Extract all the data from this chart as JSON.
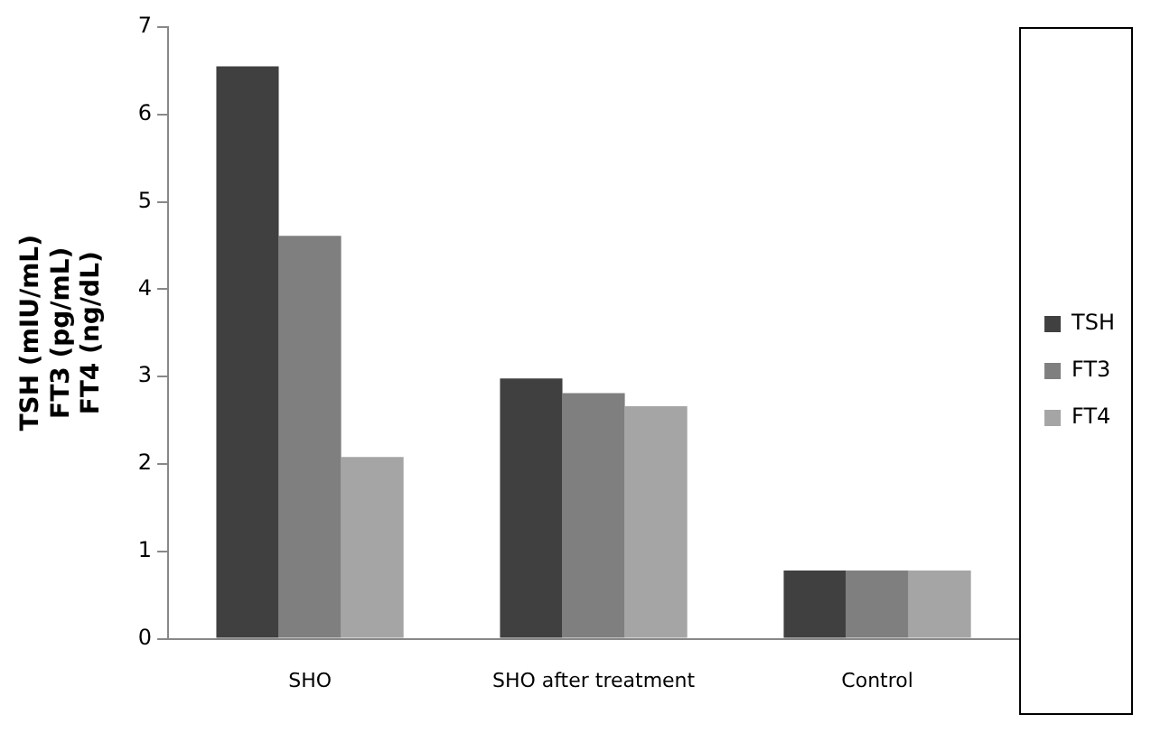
{
  "chart_data": {
    "type": "bar",
    "ylabel": "TSH (mIU/mL)\nFT3 (pg/mL)\nFT4 (ng/dL)",
    "categories": [
      "SHO",
      "SHO after treatment",
      "Control"
    ],
    "series": [
      {
        "name": "TSH",
        "color": "#404040",
        "values": [
          6.55,
          2.98,
          0.78
        ]
      },
      {
        "name": "FT3",
        "color": "#7f7f7f",
        "values": [
          4.61,
          2.81,
          0.78
        ]
      },
      {
        "name": "FT4",
        "color": "#a5a5a5",
        "values": [
          2.08,
          2.66,
          0.78
        ]
      }
    ],
    "ylim": [
      0,
      7
    ],
    "yticks": [
      0,
      1,
      2,
      3,
      4,
      5,
      6,
      7
    ],
    "grid": false,
    "legend": "right"
  }
}
